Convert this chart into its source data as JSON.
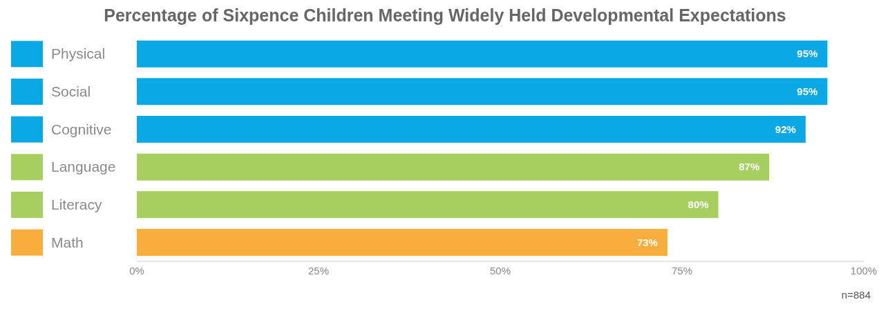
{
  "chart_data": {
    "type": "bar",
    "orientation": "horizontal",
    "title": "Percentage of Sixpence Children Meeting Widely Held Developmental Expectations",
    "categories": [
      "Physical",
      "Social",
      "Cognitive",
      "Language",
      "Literacy",
      "Math"
    ],
    "values": [
      95,
      95,
      92,
      87,
      80,
      73
    ],
    "colors": [
      "#0aa9e6",
      "#0aa9e6",
      "#0aa9e6",
      "#a6cf5f",
      "#a6cf5f",
      "#f9ad3c"
    ],
    "value_labels": [
      "95%",
      "95%",
      "92%",
      "87%",
      "80%",
      "73%"
    ],
    "xlim": [
      0,
      100
    ],
    "xticks": [
      {
        "value": 0,
        "label": "0%"
      },
      {
        "value": 25,
        "label": "25%"
      },
      {
        "value": 50,
        "label": "50%"
      },
      {
        "value": 75,
        "label": "75%"
      },
      {
        "value": 100,
        "label": "100%"
      }
    ],
    "annotations": [
      "n=884"
    ]
  }
}
